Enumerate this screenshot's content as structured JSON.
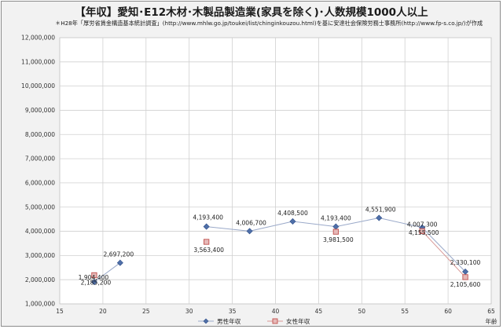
{
  "title": "【年収】愛知･E12木材･木製品製造業(家具を除く)･人数規模1000人以上",
  "subtitle": "＊H28年「厚労省賃金構造基本統計調査」(http://www.mhlw.go.jp/toukei/list/chinginkouzou.html)を基に安達社会保険労務士事務所(http://www.fp-s.co.jp/)が作成",
  "chart_data": {
    "type": "scatter",
    "title": "【年収】愛知･E12木材･木製品製造業(家具を除く)･人数規模1000人以上",
    "xlabel": "年齢",
    "ylabel": "",
    "xlim": [
      15,
      65
    ],
    "ylim": [
      1000000,
      12000000
    ],
    "x_ticks": [
      "15",
      "20",
      "25",
      "30",
      "35",
      "40",
      "45",
      "50",
      "55",
      "60",
      "65"
    ],
    "y_ticks": [
      "1,000,000",
      "2,000,000",
      "3,000,000",
      "4,000,000",
      "5,000,000",
      "6,000,000",
      "7,000,000",
      "8,000,000",
      "9,000,000",
      "10,000,000",
      "11,000,000",
      "12,000,000"
    ],
    "grid": true,
    "legend_position": "bottom",
    "series": [
      {
        "name": "男性年収",
        "color": "#4f6fa8",
        "marker": "diamond",
        "x": [
          19,
          22,
          32,
          37,
          42,
          47,
          52,
          57,
          62
        ],
        "y": [
          1904400,
          2697200,
          4193400,
          4006700,
          4408500,
          4193400,
          4551900,
          4155500,
          2330100
        ],
        "labels": [
          "1,904,400",
          "2,697,200",
          "4,193,400",
          "4,006,700",
          "4,408,500",
          "4,193,400",
          "4,551,900",
          "4,155,500",
          "2,330,100"
        ]
      },
      {
        "name": "女性年収",
        "color": "#c0504d",
        "marker": "square",
        "x": [
          19,
          32,
          47,
          57,
          62
        ],
        "y": [
          2185200,
          3563400,
          3981500,
          4007300,
          2105600
        ],
        "labels": [
          "2,185,200",
          "3,563,400",
          "3,981,500",
          "4,007,300",
          "2,105,600"
        ]
      }
    ]
  }
}
